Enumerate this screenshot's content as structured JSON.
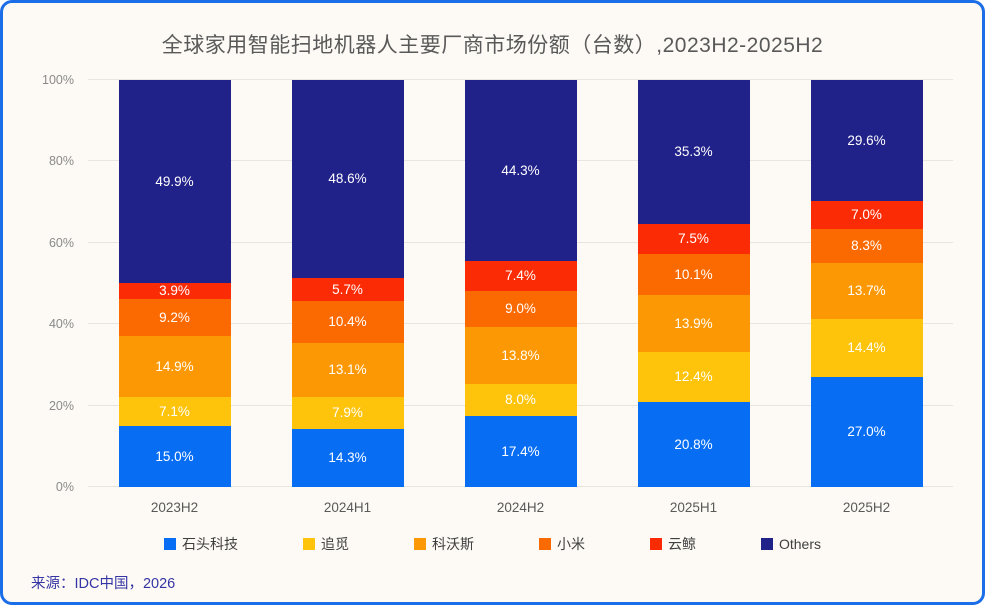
{
  "source": "来源：IDC中国，2026",
  "accent_colors": {
    "card_border": "#1B6DE8",
    "background": "#FDFAF5",
    "title_text": "#595959",
    "source_text": "#3434A4"
  },
  "chart_data": {
    "type": "bar",
    "stacked": true,
    "title": "全球家用智能扫地机器人主要厂商市场份额（台数）,2023H2-2025H2",
    "categories": [
      "2023H2",
      "2024H1",
      "2024H2",
      "2025H1",
      "2025H2"
    ],
    "series": [
      {
        "name": "石头科技",
        "color": "#076EF4",
        "values": [
          15.0,
          14.3,
          17.4,
          20.8,
          27.0
        ]
      },
      {
        "name": "追觅",
        "color": "#FEC30B",
        "values": [
          7.1,
          7.9,
          8.0,
          12.4,
          14.4
        ]
      },
      {
        "name": "科沃斯",
        "color": "#FC9803",
        "values": [
          14.9,
          13.1,
          13.8,
          13.9,
          13.7
        ]
      },
      {
        "name": "小米",
        "color": "#FB6A00",
        "values": [
          9.2,
          10.4,
          9.0,
          10.1,
          8.3
        ]
      },
      {
        "name": "云鲸",
        "color": "#FB2C05",
        "values": [
          3.9,
          5.7,
          7.4,
          7.5,
          7.0
        ]
      },
      {
        "name": "Others",
        "color": "#21218A",
        "values": [
          49.9,
          48.6,
          44.3,
          35.3,
          29.6
        ]
      }
    ],
    "xlabel": "",
    "ylabel": "",
    "ylim": [
      0,
      100
    ],
    "yticks": [
      "0%",
      "20%",
      "40%",
      "60%",
      "80%",
      "100%"
    ],
    "grid": true,
    "legend_position": "bottom",
    "value_label_format": "0.0%"
  }
}
